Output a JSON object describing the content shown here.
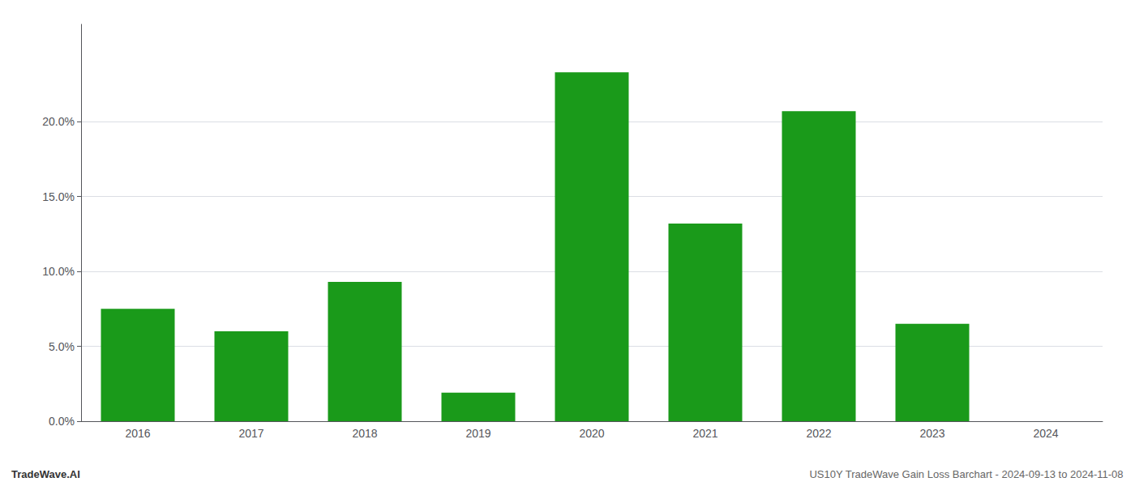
{
  "chart_data": {
    "type": "bar",
    "categories": [
      "2016",
      "2017",
      "2018",
      "2019",
      "2020",
      "2021",
      "2022",
      "2023",
      "2024"
    ],
    "values": [
      0.075,
      0.06,
      0.093,
      0.019,
      0.233,
      0.132,
      0.207,
      0.065,
      0
    ],
    "color": "#1a9a1a",
    "ylim": [
      0,
      0.265
    ],
    "yticks": [
      {
        "value": 0,
        "label": "0.0%"
      },
      {
        "value": 0.05,
        "label": "5.0%"
      },
      {
        "value": 0.1,
        "label": "10.0%"
      },
      {
        "value": 0.15,
        "label": "15.0%"
      },
      {
        "value": 0.2,
        "label": "20.0%"
      }
    ],
    "grid": true,
    "annotations": [
      "TradeWave.AI",
      "US10Y TradeWave Gain Loss Barchart - 2024-09-13 to 2024-11-08"
    ]
  }
}
